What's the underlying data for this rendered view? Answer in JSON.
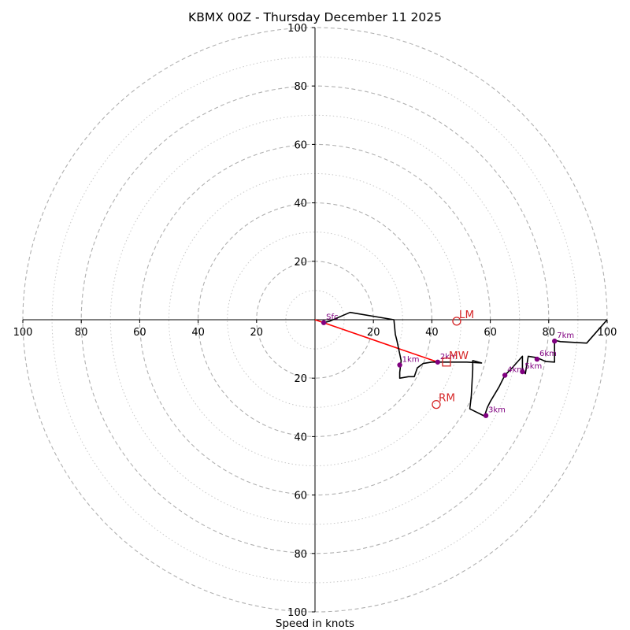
{
  "chart_data": {
    "type": "hodograph",
    "title": "KBMX 00Z - Thursday December 11 2025",
    "xlabel": "Speed in knots",
    "units": "knots",
    "range": [
      -100,
      100
    ],
    "rings_major": [
      20,
      40,
      60,
      80,
      100
    ],
    "rings_minor": [
      10,
      30,
      50,
      70,
      90
    ],
    "x_tick_labels": [
      {
        "value": -100,
        "label": "100"
      },
      {
        "value": -80,
        "label": "80"
      },
      {
        "value": -60,
        "label": "60"
      },
      {
        "value": -40,
        "label": "40"
      },
      {
        "value": -20,
        "label": "20"
      },
      {
        "value": 20,
        "label": "20"
      },
      {
        "value": 40,
        "label": "40"
      },
      {
        "value": 60,
        "label": "60"
      },
      {
        "value": 80,
        "label": "80"
      },
      {
        "value": 100,
        "label": "100"
      }
    ],
    "y_tick_labels": [
      {
        "value": 100,
        "label": "100"
      },
      {
        "value": 80,
        "label": "80"
      },
      {
        "value": 60,
        "label": "60"
      },
      {
        "value": 40,
        "label": "40"
      },
      {
        "value": 20,
        "label": "20"
      },
      {
        "value": -20,
        "label": "20"
      },
      {
        "value": -40,
        "label": "40"
      },
      {
        "value": -60,
        "label": "60"
      },
      {
        "value": -80,
        "label": "80"
      },
      {
        "value": -100,
        "label": "100"
      }
    ],
    "trace": [
      [
        3,
        -1
      ],
      [
        5,
        -0.5
      ],
      [
        12,
        2.5
      ],
      [
        27,
        0
      ],
      [
        27.5,
        -5
      ],
      [
        28,
        -7
      ],
      [
        29.5,
        -14
      ],
      [
        29,
        -18
      ],
      [
        29,
        -20
      ],
      [
        32,
        -19.5
      ],
      [
        34,
        -19.5
      ],
      [
        35,
        -16.5
      ],
      [
        37,
        -15
      ],
      [
        40,
        -14.5
      ],
      [
        42,
        -14.5
      ],
      [
        47,
        -14.5
      ],
      [
        52,
        -14.5
      ],
      [
        57,
        -14.8
      ],
      [
        54,
        -14
      ],
      [
        54,
        -17
      ],
      [
        53.5,
        -26
      ],
      [
        53,
        -30.5
      ],
      [
        58,
        -33
      ],
      [
        59,
        -30
      ],
      [
        60,
        -28
      ],
      [
        63,
        -23
      ],
      [
        65,
        -19
      ],
      [
        67,
        -17
      ],
      [
        71,
        -12.5
      ],
      [
        71,
        -17
      ],
      [
        72,
        -18.5
      ],
      [
        73,
        -12.5
      ],
      [
        76,
        -13
      ],
      [
        79,
        -14.3
      ],
      [
        82,
        -14.5
      ],
      [
        82,
        -7
      ],
      [
        84,
        -7.5
      ],
      [
        93,
        -8
      ],
      [
        100,
        0
      ]
    ],
    "height_markers": [
      {
        "label": "Sfc",
        "u": 3,
        "v": -1
      },
      {
        "label": "1km",
        "u": 29,
        "v": -15.5
      },
      {
        "label": "2km",
        "u": 42,
        "v": -14.5
      },
      {
        "label": "3km",
        "u": 58.5,
        "v": -32.8
      },
      {
        "label": "4km",
        "u": 65,
        "v": -19
      },
      {
        "label": "5km",
        "u": 71,
        "v": -17.8
      },
      {
        "label": "6km",
        "u": 76,
        "v": -13.5
      },
      {
        "label": "7km",
        "u": 82,
        "v": -7.3
      }
    ],
    "storm_motions": [
      {
        "label": "LM",
        "u": 48.5,
        "v": -0.5
      },
      {
        "label": "MW",
        "u": 45,
        "v": -14.5
      },
      {
        "label": "RM",
        "u": 41.5,
        "v": -29
      }
    ],
    "shear_vector": {
      "from": [
        0,
        0
      ],
      "to": [
        42,
        -14.5
      ]
    },
    "colors": {
      "trace": "#000000",
      "markers": "#800080",
      "storm_motion": "#d62728",
      "shear_vector": "#ff0000",
      "grid": "#b0b0b0",
      "axes": "#000000"
    }
  }
}
